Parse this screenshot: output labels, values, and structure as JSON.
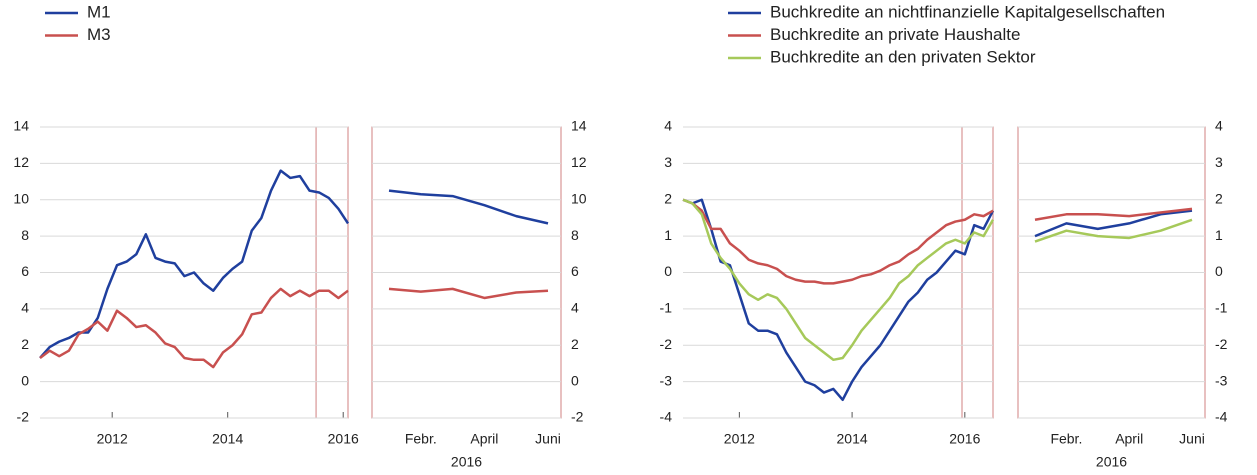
{
  "chart_data": [
    {
      "type": "line",
      "grid": true,
      "yaxis_side": "left",
      "x": [
        2010.75,
        2010.917,
        2011.083,
        2011.25,
        2011.417,
        2011.583,
        2011.75,
        2011.917,
        2012.083,
        2012.25,
        2012.417,
        2012.583,
        2012.75,
        2012.917,
        2013.083,
        2013.25,
        2013.417,
        2013.583,
        2013.75,
        2013.917,
        2014.083,
        2014.25,
        2014.417,
        2014.583,
        2014.75,
        2014.917,
        2015.083,
        2015.25,
        2015.417,
        2015.583,
        2015.75,
        2015.917,
        2016.083
      ],
      "xlim": [
        2010.75,
        2016.083
      ],
      "xticks": [
        2012,
        2014,
        2016
      ],
      "highlight": [
        2015.53,
        2016.083
      ],
      "ylim": [
        -2,
        14
      ],
      "yticks": [
        -2,
        0,
        2,
        4,
        6,
        8,
        10,
        12,
        14
      ],
      "series": [
        {
          "name": "M1",
          "color": "#1f3f9e",
          "values": [
            1.3,
            1.9,
            2.2,
            2.4,
            2.7,
            2.7,
            3.5,
            5.1,
            6.4,
            6.6,
            7.0,
            8.1,
            6.8,
            6.6,
            6.5,
            5.8,
            6.0,
            5.4,
            5.0,
            5.7,
            6.2,
            6.6,
            8.3,
            9.0,
            10.5,
            11.6,
            11.2,
            11.3,
            10.5,
            10.4,
            10.1,
            9.5,
            8.7
          ]
        },
        {
          "name": "M3",
          "color": "#c8504f",
          "values": [
            1.3,
            1.7,
            1.4,
            1.7,
            2.6,
            2.9,
            3.3,
            2.8,
            3.9,
            3.5,
            3.0,
            3.1,
            2.7,
            2.1,
            1.9,
            1.3,
            1.2,
            1.2,
            0.8,
            1.6,
            2.0,
            2.6,
            3.7,
            3.8,
            4.6,
            5.1,
            4.7,
            5.0,
            4.7,
            5.0,
            5.0,
            4.6,
            5.0
          ]
        }
      ]
    },
    {
      "type": "line",
      "grid": true,
      "yaxis_side": "right",
      "categories": [
        null,
        "Febr.",
        null,
        "April",
        null,
        "Juni"
      ],
      "xlabel": "2016",
      "ylim": [
        -2,
        14
      ],
      "yticks": [
        -2,
        0,
        2,
        4,
        6,
        8,
        10,
        12,
        14
      ],
      "series": [
        {
          "color": "#1f3f9e",
          "values": [
            10.5,
            10.3,
            10.2,
            9.7,
            9.1,
            8.7
          ]
        },
        {
          "color": "#c8504f",
          "values": [
            5.1,
            4.95,
            5.1,
            4.6,
            4.9,
            5.0
          ]
        }
      ]
    },
    {
      "type": "line",
      "grid": true,
      "yaxis_side": "left",
      "x": [
        2011.0,
        2011.167,
        2011.333,
        2011.5,
        2011.667,
        2011.833,
        2012.0,
        2012.167,
        2012.333,
        2012.5,
        2012.667,
        2012.833,
        2013.0,
        2013.167,
        2013.333,
        2013.5,
        2013.667,
        2013.833,
        2014.0,
        2014.167,
        2014.333,
        2014.5,
        2014.667,
        2014.833,
        2015.0,
        2015.167,
        2015.333,
        2015.5,
        2015.667,
        2015.833,
        2016.0,
        2016.167,
        2016.333,
        2016.5
      ],
      "xlim": [
        2011.0,
        2016.5
      ],
      "xticks": [
        2012,
        2014,
        2016
      ],
      "highlight": [
        2015.95,
        2016.5
      ],
      "ylim": [
        -4,
        4
      ],
      "yticks": [
        -4,
        -3,
        -2,
        -1,
        0,
        1,
        2,
        3,
        4
      ],
      "series": [
        {
          "name": "Buchkredite an nichtfinanzielle Kapitalgesellschaften",
          "color": "#1f3f9e",
          "values": [
            2.0,
            1.9,
            2.0,
            1.2,
            0.3,
            0.2,
            -0.6,
            -1.4,
            -1.6,
            -1.6,
            -1.7,
            -2.2,
            -2.6,
            -3.0,
            -3.1,
            -3.3,
            -3.2,
            -3.5,
            -3.0,
            -2.6,
            -2.3,
            -2.0,
            -1.6,
            -1.2,
            -0.8,
            -0.55,
            -0.2,
            0.0,
            0.3,
            0.6,
            0.5,
            1.3,
            1.2,
            1.7
          ]
        },
        {
          "name": "Buchkredite an private Haushalte",
          "color": "#c8504f",
          "values": [
            2.0,
            1.9,
            1.7,
            1.2,
            1.2,
            0.8,
            0.6,
            0.35,
            0.25,
            0.2,
            0.1,
            -0.1,
            -0.2,
            -0.25,
            -0.25,
            -0.3,
            -0.3,
            -0.25,
            -0.2,
            -0.1,
            -0.05,
            0.05,
            0.2,
            0.3,
            0.5,
            0.65,
            0.9,
            1.1,
            1.3,
            1.4,
            1.45,
            1.6,
            1.55,
            1.7
          ]
        },
        {
          "name": "Buchkredite an den privaten Sektor",
          "color": "#a6c95a",
          "values": [
            2.0,
            1.9,
            1.6,
            0.8,
            0.4,
            0.1,
            -0.3,
            -0.6,
            -0.75,
            -0.6,
            -0.7,
            -1.0,
            -1.4,
            -1.8,
            -2.0,
            -2.2,
            -2.4,
            -2.35,
            -2.0,
            -1.6,
            -1.3,
            -1.0,
            -0.7,
            -0.3,
            -0.1,
            0.2,
            0.4,
            0.6,
            0.8,
            0.9,
            0.8,
            1.1,
            1.0,
            1.45
          ]
        }
      ]
    },
    {
      "type": "line",
      "grid": true,
      "yaxis_side": "right",
      "categories": [
        null,
        "Febr.",
        null,
        "April",
        null,
        "Juni"
      ],
      "xlabel": "2016",
      "ylim": [
        -4,
        4
      ],
      "yticks": [
        -4,
        -3,
        -2,
        -1,
        0,
        1,
        2,
        3,
        4
      ],
      "series": [
        {
          "color": "#1f3f9e",
          "values": [
            1.0,
            1.35,
            1.2,
            1.35,
            1.6,
            1.7
          ]
        },
        {
          "color": "#c8504f",
          "values": [
            1.45,
            1.6,
            1.6,
            1.55,
            1.65,
            1.75
          ]
        },
        {
          "color": "#a6c95a",
          "values": [
            0.85,
            1.15,
            1.0,
            0.95,
            1.15,
            1.45
          ]
        }
      ]
    }
  ]
}
